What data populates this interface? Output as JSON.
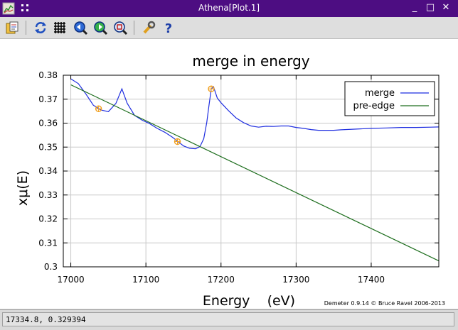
{
  "window": {
    "title": "Athena[Plot.1]"
  },
  "titlebar_controls": {
    "minimize": "_",
    "maximize": "□",
    "close": "✕"
  },
  "toolbar": {
    "icons": [
      "save-icon",
      "refresh-icon",
      "grid-icon",
      "zoom-prev-icon",
      "zoom-in-icon",
      "zoom-fit-icon",
      "settings-icon",
      "help-icon"
    ]
  },
  "status": {
    "text": "17334.8, 0.329394"
  },
  "credit": "Demeter 0.9.14 © Bruce Ravel 2006-2013",
  "chart_data": {
    "type": "line",
    "title": "merge in energy",
    "xlabel": "Energy    (eV)",
    "ylabel": "xμ(E)",
    "xlim": [
      16990,
      17490
    ],
    "ylim": [
      0.3,
      0.38
    ],
    "xticks": [
      17000,
      17100,
      17200,
      17300,
      17400
    ],
    "xtick_labels": [
      "17000",
      "17100",
      "17200",
      "17300",
      "17400"
    ],
    "yticks": [
      0.3,
      0.31,
      0.32,
      0.33,
      0.34,
      0.35,
      0.36,
      0.37,
      0.38
    ],
    "ytick_labels": [
      "0.3",
      "0.31",
      "0.32",
      "0.33",
      "0.34",
      "0.35",
      "0.36",
      "0.37",
      "0.38"
    ],
    "grid": true,
    "legend_position": "top-right",
    "series": [
      {
        "name": "merge",
        "color": "#1f2ee0",
        "x": [
          17000,
          17010,
          17020,
          17030,
          17040,
          17050,
          17060,
          17068,
          17075,
          17085,
          17095,
          17105,
          17115,
          17125,
          17135,
          17142,
          17150,
          17158,
          17166,
          17172,
          17177,
          17181,
          17184,
          17187,
          17190,
          17195,
          17200,
          17210,
          17220,
          17230,
          17240,
          17250,
          17260,
          17270,
          17280,
          17290,
          17300,
          17310,
          17320,
          17330,
          17340,
          17350,
          17360,
          17380,
          17400,
          17420,
          17440,
          17460,
          17480,
          17490
        ],
        "y": [
          0.3785,
          0.3765,
          0.3722,
          0.3675,
          0.3655,
          0.3648,
          0.3682,
          0.3743,
          0.3683,
          0.3632,
          0.3612,
          0.3598,
          0.3578,
          0.3562,
          0.3542,
          0.3525,
          0.3505,
          0.3495,
          0.3493,
          0.3502,
          0.3535,
          0.3602,
          0.3675,
          0.3742,
          0.3752,
          0.3705,
          0.3685,
          0.3652,
          0.3622,
          0.3602,
          0.3588,
          0.3583,
          0.3587,
          0.3586,
          0.3588,
          0.3588,
          0.3582,
          0.3578,
          0.3573,
          0.357,
          0.357,
          0.357,
          0.3572,
          0.3575,
          0.3578,
          0.358,
          0.3582,
          0.3582,
          0.3583,
          0.3584
        ]
      },
      {
        "name": "pre-edge",
        "color": "#1e6e1e",
        "x": [
          17000,
          17490
        ],
        "y": [
          0.376,
          0.3025
        ]
      }
    ],
    "markers": [
      {
        "x": 17037,
        "y": 0.366
      },
      {
        "x": 17142,
        "y": 0.3523
      },
      {
        "x": 17187,
        "y": 0.3743
      }
    ]
  }
}
